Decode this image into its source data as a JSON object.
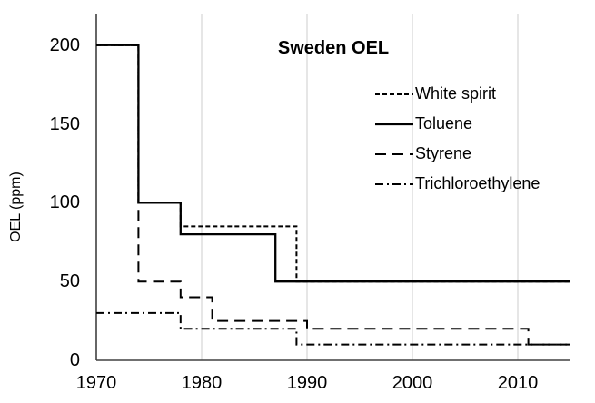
{
  "figure": {
    "title": "Sweden OEL",
    "y_axis_title": "OEL (ppm)"
  },
  "style": {
    "background_color": "#ffffff",
    "line_color": "#000000",
    "gridline_color": "#d9d9d9",
    "axis_color": "#404040",
    "text_color": "#000000"
  },
  "chart_data": {
    "type": "line",
    "subtype": "step",
    "title": "Sweden OEL",
    "xlabel": "",
    "ylabel": "OEL (ppm)",
    "xlim": [
      1970,
      2015
    ],
    "ylim": [
      0,
      220
    ],
    "x_ticks": [
      1970,
      1980,
      1990,
      2000,
      2010
    ],
    "y_ticks": [
      0,
      50,
      100,
      150,
      200
    ],
    "grid": "vertical gridlines at decade ticks only",
    "legend_position": "inside top-right, no border",
    "series": [
      {
        "name": "White spirit",
        "line_style": "short-dash",
        "steps": [
          [
            1970,
            200
          ],
          [
            1974,
            100
          ],
          [
            1978,
            85
          ],
          [
            1989,
            50
          ]
        ],
        "end_year": 2015
      },
      {
        "name": "Toluene",
        "line_style": "solid",
        "steps": [
          [
            1970,
            200
          ],
          [
            1974,
            100
          ],
          [
            1978,
            80
          ],
          [
            1987,
            50
          ]
        ],
        "end_year": 2015
      },
      {
        "name": "Styrene",
        "line_style": "long-dash",
        "steps": [
          [
            1970,
            200
          ],
          [
            1974,
            50
          ],
          [
            1978,
            40
          ],
          [
            1981,
            25
          ],
          [
            1990,
            20
          ],
          [
            2011,
            10
          ]
        ],
        "end_year": 2015
      },
      {
        "name": "Trichloroethylene",
        "line_style": "dash-dot",
        "steps": [
          [
            1970,
            30
          ],
          [
            1978,
            20
          ],
          [
            1989,
            10
          ]
        ],
        "end_year": 2015
      }
    ]
  }
}
